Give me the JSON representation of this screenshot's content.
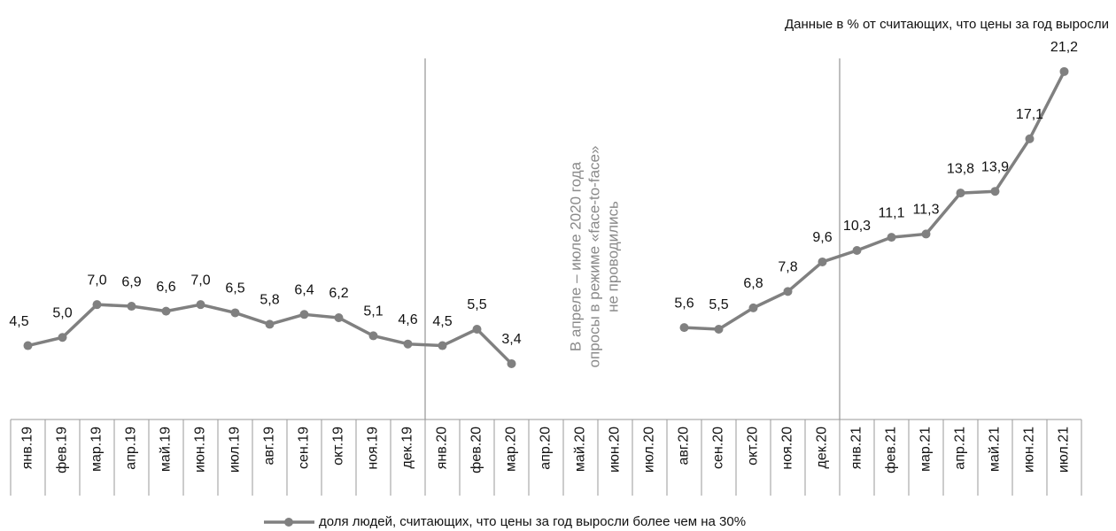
{
  "chart_data": {
    "type": "line",
    "note": "Данные в % от считающих, что цены за год выросли",
    "annotation": [
      "В апреле – июле 2020 года",
      "опросы в режиме «face-to-face»",
      "не проводились"
    ],
    "categories": [
      "янв.19",
      "фев.19",
      "мар.19",
      "апр.19",
      "май.19",
      "июн.19",
      "июл.19",
      "авг.19",
      "сен.19",
      "окт.19",
      "ноя.19",
      "дек.19",
      "янв.20",
      "фев.20",
      "мар.20",
      "апр.20",
      "май.20",
      "июн.20",
      "июл.20",
      "авг.20",
      "сен.20",
      "окт.20",
      "ноя.20",
      "дек.20",
      "янв.21",
      "фев.21",
      "мар.21",
      "апр.21",
      "май.21",
      "июн.21",
      "июл.21"
    ],
    "series": [
      {
        "name": "доля людей, считающих, что цены за год выросли более чем на 30%",
        "color": "#808080",
        "values": [
          4.5,
          5.0,
          7.0,
          6.9,
          6.6,
          7.0,
          6.5,
          5.8,
          6.4,
          6.2,
          5.1,
          4.6,
          4.5,
          5.5,
          3.4,
          null,
          null,
          null,
          null,
          5.6,
          5.5,
          6.8,
          7.8,
          9.6,
          10.3,
          11.1,
          11.3,
          13.8,
          13.9,
          17.1,
          21.2
        ],
        "value_labels": [
          "4,5",
          "5,0",
          "7,0",
          "6,9",
          "6,6",
          "7,0",
          "6,5",
          "5,8",
          "6,4",
          "6,2",
          "5,1",
          "4,6",
          "4,5",
          "5,5",
          "3,4",
          null,
          null,
          null,
          null,
          "5,6",
          "5,5",
          "6,8",
          "7,8",
          "9,6",
          "10,3",
          "11,1",
          "11,3",
          "13,8",
          "13,9",
          "17,1",
          "21,2"
        ]
      }
    ],
    "ylim": [
      0,
      22
    ]
  }
}
